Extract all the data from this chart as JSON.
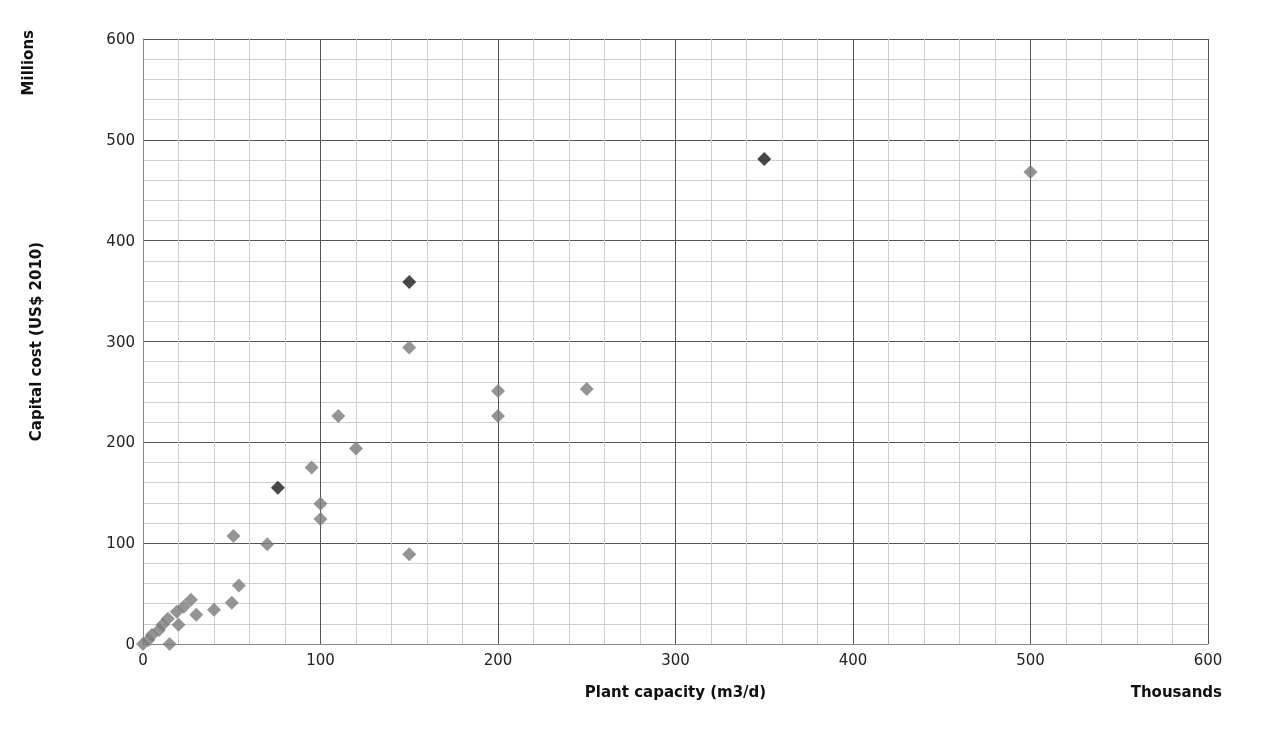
{
  "chart_data": {
    "type": "scatter",
    "xlabel": "Plant capacity (m3/d)",
    "ylabel": "Capital cost (US$ 2010)",
    "annotations": [
      "Millions",
      "Thousands"
    ],
    "series": [
      {
        "color": "#7a7a7a",
        "x": [
          0,
          3,
          5,
          9,
          11,
          14,
          15,
          19,
          20,
          23,
          27,
          30,
          40,
          50,
          51,
          54,
          70,
          95,
          100,
          100,
          110,
          120,
          150,
          150,
          200,
          200,
          250,
          500
        ],
        "values": [
          0,
          4,
          9,
          14,
          19,
          25,
          0,
          32,
          19,
          37,
          44,
          29,
          34,
          41,
          107,
          58,
          99,
          175,
          139,
          124,
          226,
          194,
          89,
          294,
          251,
          226,
          253,
          468
        ]
      },
      {
        "color": "#1a1a1a",
        "x": [
          76,
          150,
          350
        ],
        "values": [
          155,
          359,
          481
        ]
      }
    ],
    "xlim": [
      0,
      600
    ],
    "xticks": [
      0,
      100,
      200,
      300,
      400,
      500,
      600
    ],
    "ylim": [
      0,
      600
    ],
    "yticks": [
      0,
      100,
      200,
      300,
      400,
      500,
      600
    ],
    "grid": true,
    "marker": "diamond"
  }
}
